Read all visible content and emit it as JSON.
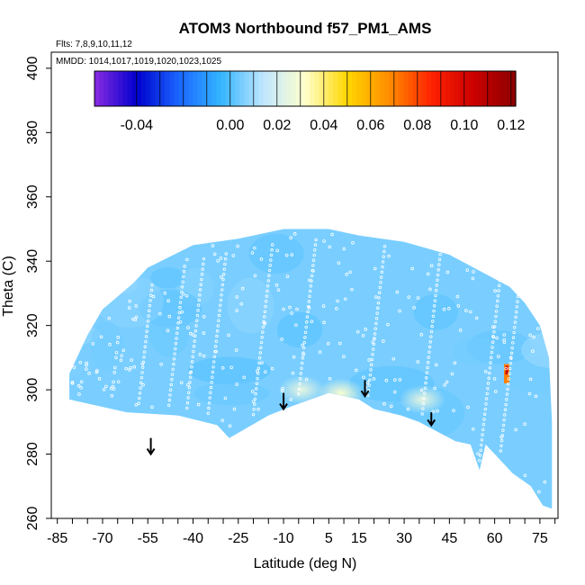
{
  "chart_data": {
    "type": "heatmap",
    "title": "ATOM3 Northbound f57_PM1_AMS",
    "subtitle_flights": "Flts: 7,8,9,10,11,12",
    "subtitle_dates": "MMDD: 1014,1017,1019,1020,1023,1025",
    "xlabel": "Latitude (deg N)",
    "ylabel": "Theta (C)",
    "xlim": [
      -87,
      81
    ],
    "ylim": [
      260,
      405
    ],
    "x_tick_labels": [
      "-85",
      "-70",
      "-55",
      "-40",
      "-25",
      "-10",
      "5",
      "15",
      "30",
      "45",
      "60",
      "75"
    ],
    "x_tick_values": [
      -85,
      -70,
      -55,
      -40,
      -25,
      -10,
      5,
      15,
      30,
      45,
      60,
      75
    ],
    "y_tick_values": [
      260,
      280,
      300,
      320,
      340,
      360,
      380,
      400
    ],
    "y_tick_labels": [
      "260",
      "280",
      "300",
      "320",
      "340",
      "360",
      "380",
      "400"
    ],
    "colorbar": {
      "range": [
        -0.058,
        0.122
      ],
      "tick_labels": [
        "-0.04",
        "0.00",
        "0.02",
        "0.04",
        "0.06",
        "0.08",
        "0.10",
        "0.12"
      ],
      "tick_values": [
        -0.04,
        0.0,
        0.02,
        0.04,
        0.06,
        0.08,
        0.1,
        0.12
      ],
      "colors": [
        "#8a2be2",
        "#0000cc",
        "#1a66ff",
        "#33b5ff",
        "#bfe6ff",
        "#ffffcc",
        "#ffd700",
        "#ff8c00",
        "#ff2200",
        "#cc0000",
        "#8b0000"
      ]
    },
    "background_value": 0.005,
    "highlight": {
      "lat": 64,
      "theta_min": 302,
      "theta_max": 308,
      "value": 0.07
    },
    "light_patches": [
      {
        "lat": -4,
        "theta": 300,
        "value": 0.025
      },
      {
        "lat": 9,
        "theta": 299,
        "value": 0.03
      },
      {
        "lat": 36,
        "theta": 297,
        "value": 0.025
      }
    ],
    "arrows": [
      {
        "lat": -54,
        "theta_tail": 285,
        "theta_head": 280
      },
      {
        "lat": -10,
        "theta_tail": 299,
        "theta_head": 294
      },
      {
        "lat": 17,
        "theta_tail": 303,
        "theta_head": 298
      },
      {
        "lat": 39,
        "theta_tail": 293,
        "theta_head": 289
      }
    ],
    "domain_top": [
      [
        -81,
        305
      ],
      [
        -75,
        317
      ],
      [
        -70,
        325
      ],
      [
        -60,
        333
      ],
      [
        -55,
        338
      ],
      [
        -40,
        345
      ],
      [
        -25,
        347
      ],
      [
        -10,
        350
      ],
      [
        5,
        350
      ],
      [
        15,
        348
      ],
      [
        30,
        346
      ],
      [
        45,
        342
      ],
      [
        55,
        337
      ],
      [
        65,
        332
      ],
      [
        70,
        327
      ],
      [
        75,
        320
      ],
      [
        78,
        310
      ],
      [
        79,
        290
      ],
      [
        79,
        275
      ]
    ],
    "domain_bottom": [
      [
        -81,
        297
      ],
      [
        -62,
        293
      ],
      [
        -45,
        292
      ],
      [
        -32,
        289
      ],
      [
        -28,
        285
      ],
      [
        -15,
        292
      ],
      [
        -7,
        295
      ],
      [
        5,
        299
      ],
      [
        15,
        297
      ],
      [
        20,
        294
      ],
      [
        29,
        292
      ],
      [
        35,
        290
      ],
      [
        43,
        286
      ],
      [
        47,
        284
      ],
      [
        52,
        283
      ],
      [
        55,
        275
      ],
      [
        57,
        283
      ],
      [
        60,
        280
      ],
      [
        66,
        274
      ],
      [
        72,
        270
      ],
      [
        76,
        264
      ],
      [
        79,
        263
      ]
    ]
  }
}
